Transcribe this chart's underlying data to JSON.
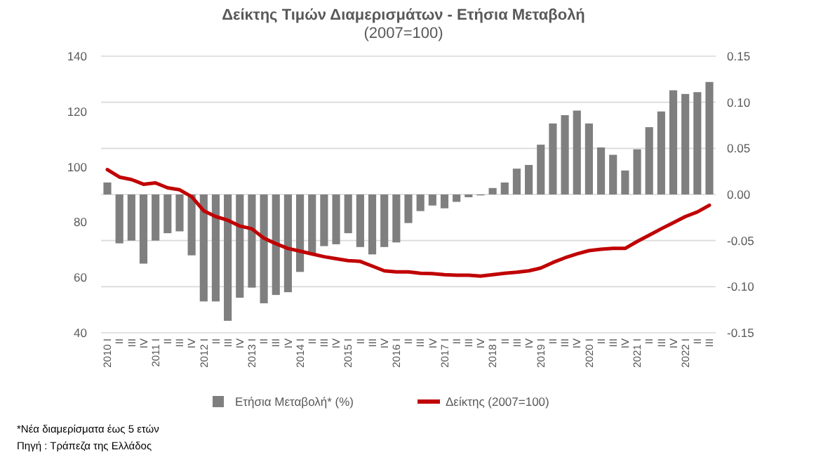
{
  "chart_data": {
    "type": "bar",
    "title": "Δείκτης Τιμών Διαμερισμάτων - Ετήσια Μεταβολή",
    "subtitle": "(2007=100)",
    "categories": [
      "2010 I",
      "II",
      "III",
      "IV",
      "2011 I",
      "II",
      "III",
      "IV",
      "2012 I",
      "II",
      "III",
      "IV",
      "2013 I",
      "II",
      "III",
      "IV",
      "2014 I",
      "II",
      "III",
      "IV",
      "2015 I",
      "II",
      "III",
      "IV",
      "2016 I",
      "II",
      "III",
      "IV",
      "2017 I",
      "II",
      "III",
      "IV",
      "2018 I",
      "II",
      "III",
      "IV",
      "2019 I",
      "II",
      "III",
      "IV",
      "2020 I",
      "II",
      "III",
      "IV",
      "2021 I",
      "II",
      "III",
      "IV",
      "2022 I",
      "II",
      "III"
    ],
    "series": [
      {
        "name": "Ετήσια Μεταβολή* (%)",
        "axis": "y2",
        "color": "#7f7f7f",
        "values": [
          0.013,
          -0.053,
          -0.05,
          -0.075,
          -0.05,
          -0.042,
          -0.04,
          -0.066,
          -0.116,
          -0.116,
          -0.137,
          -0.112,
          -0.101,
          -0.118,
          -0.109,
          -0.106,
          -0.084,
          -0.064,
          -0.056,
          -0.054,
          -0.042,
          -0.057,
          -0.065,
          -0.057,
          -0.052,
          -0.031,
          -0.018,
          -0.012,
          -0.015,
          -0.008,
          -0.003,
          -0.001,
          0.007,
          0.013,
          0.028,
          0.032,
          0.054,
          0.077,
          0.086,
          0.091,
          0.077,
          0.051,
          0.043,
          0.026,
          0.049,
          0.073,
          0.09,
          0.113,
          0.109,
          0.111,
          0.122
        ]
      },
      {
        "name": "Δείκτης (2007=100)",
        "type": "line",
        "color": "#c00000",
        "values": [
          99.0,
          96.3,
          95.4,
          93.7,
          94.2,
          92.4,
          91.7,
          89.2,
          84.1,
          82,
          80.7,
          78.6,
          77.6,
          74.2,
          72.2,
          70.5,
          69.5,
          68.5,
          67.5,
          66.8,
          66.1,
          65.8,
          64.1,
          62.4,
          62,
          62,
          61.5,
          61.4,
          61,
          60.8,
          60.8,
          60.5,
          61,
          61.5,
          61.9,
          62.4,
          63.4,
          65.4,
          67.1,
          68.5,
          69.7,
          70.2,
          70.5,
          70.5,
          73,
          75.3,
          77.6,
          79.8,
          82,
          83.7,
          86.1
        ]
      }
    ],
    "ylim": [
      40,
      140
    ],
    "yticks": [
      40,
      60,
      80,
      100,
      120,
      140
    ],
    "y2lim": [
      -0.15,
      0.15
    ],
    "y2ticks": [
      {
        "value": -0.15,
        "label": "-0.15"
      },
      {
        "value": -0.1,
        "label": "-0.10"
      },
      {
        "value": -0.05,
        "label": "-0.05"
      },
      {
        "value": 0,
        "label": "0.00"
      },
      {
        "value": 0.05,
        "label": "0.05"
      },
      {
        "value": 0.1,
        "label": "0.10"
      },
      {
        "value": 0.15,
        "label": "0.15"
      }
    ],
    "grid": true,
    "legend": "bottom",
    "annotations": [
      "*Νέα διαμερίσματα έως 5 ετών",
      "Πηγή : Τράπεζα της Ελλάδος"
    ]
  }
}
